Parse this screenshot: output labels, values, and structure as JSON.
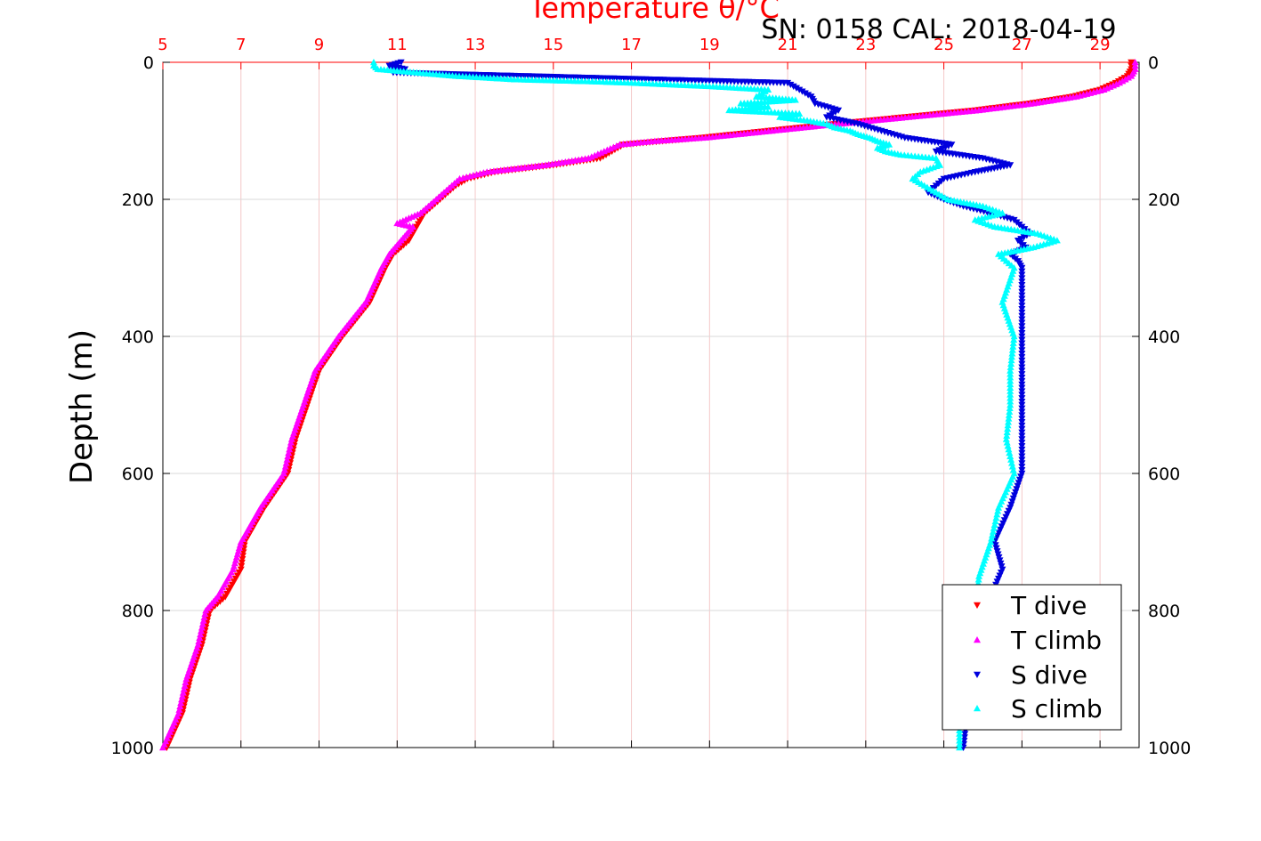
{
  "chart_data": {
    "type": "scatter",
    "title": "Temperature θ/°C",
    "subtitle": "SN: 0158  CAL: 2018-04-19",
    "ylabel": "Depth (m)",
    "xlim": [
      5,
      30
    ],
    "ylim": [
      0,
      1000
    ],
    "x_ticks": [
      "5",
      "7",
      "9",
      "11",
      "13",
      "15",
      "17",
      "19",
      "21",
      "23",
      "25",
      "27",
      "29"
    ],
    "y_ticks": [
      "0",
      "200",
      "400",
      "600",
      "800",
      "1000"
    ],
    "grid": true,
    "legend_position": "bottom-right",
    "colors": {
      "t_dive": "#ff0000",
      "t_climb": "#ff00ff",
      "s_dive": "#0000dd",
      "s_climb": "#00ffff",
      "top_axis": "#ff0000"
    },
    "series": [
      {
        "name": "T dive",
        "marker": "triangle-down",
        "depth": [
          0,
          10,
          20,
          30,
          40,
          50,
          60,
          70,
          80,
          90,
          100,
          110,
          115,
          120,
          130,
          140,
          150,
          160,
          170,
          180,
          200,
          220,
          240,
          260,
          280,
          300,
          350,
          400,
          450,
          500,
          550,
          600,
          650,
          700,
          740,
          780,
          800,
          850,
          900,
          950,
          1000
        ],
        "values": [
          29.8,
          29.8,
          29.7,
          29.4,
          29.0,
          28.3,
          27.2,
          25.8,
          24.0,
          22.2,
          20.5,
          18.8,
          17.8,
          16.8,
          16.5,
          16.2,
          15.0,
          13.5,
          12.8,
          12.5,
          12.1,
          11.7,
          11.5,
          11.3,
          10.9,
          10.7,
          10.3,
          9.6,
          9.0,
          8.7,
          8.4,
          8.2,
          7.6,
          7.1,
          7.0,
          6.6,
          6.2,
          6.0,
          5.7,
          5.5,
          5.1
        ]
      },
      {
        "name": "T climb",
        "marker": "triangle-up",
        "depth": [
          0,
          10,
          20,
          30,
          40,
          50,
          60,
          70,
          80,
          90,
          100,
          110,
          115,
          120,
          130,
          140,
          150,
          160,
          170,
          180,
          200,
          220,
          235,
          240,
          260,
          280,
          300,
          350,
          400,
          450,
          500,
          550,
          600,
          650,
          700,
          740,
          780,
          800,
          850,
          900,
          950,
          1000
        ],
        "values": [
          29.9,
          29.9,
          29.8,
          29.5,
          29.1,
          28.4,
          27.3,
          25.9,
          24.1,
          22.3,
          20.6,
          18.9,
          17.6,
          16.7,
          16.3,
          15.9,
          14.8,
          13.3,
          12.6,
          12.4,
          12.0,
          11.6,
          11.0,
          11.4,
          11.1,
          10.8,
          10.6,
          10.2,
          9.5,
          8.9,
          8.6,
          8.3,
          8.1,
          7.5,
          7.0,
          6.8,
          6.4,
          6.1,
          5.9,
          5.6,
          5.4,
          5.0
        ]
      },
      {
        "name": "S dive",
        "marker": "triangle-down",
        "depth": [
          0,
          5,
          10,
          15,
          30,
          40,
          50,
          60,
          70,
          80,
          90,
          100,
          110,
          120,
          130,
          140,
          150,
          160,
          170,
          180,
          190,
          200,
          210,
          220,
          230,
          240,
          250,
          260,
          270,
          280,
          290,
          300,
          350,
          400,
          450,
          500,
          550,
          600,
          650,
          700,
          740,
          780,
          800,
          850,
          900,
          950,
          1000
        ],
        "values": [
          11.1,
          10.8,
          11.2,
          10.9,
          21.0,
          21.3,
          21.6,
          21.7,
          22.3,
          22.0,
          22.8,
          23.4,
          24.0,
          25.2,
          24.8,
          26.0,
          26.7,
          25.8,
          25.0,
          24.8,
          24.6,
          25.0,
          25.5,
          26.2,
          26.8,
          27.0,
          27.2,
          26.9,
          27.1,
          26.7,
          26.9,
          27.0,
          27.0,
          27.0,
          27.0,
          27.0,
          27.0,
          27.0,
          26.7,
          26.3,
          26.5,
          26.2,
          26.0,
          25.9,
          25.8,
          25.6,
          25.5
        ]
      },
      {
        "name": "S climb",
        "marker": "triangle-up",
        "depth": [
          0,
          5,
          10,
          15,
          20,
          25,
          28,
          30,
          35,
          40,
          50,
          55,
          60,
          65,
          70,
          75,
          80,
          85,
          90,
          95,
          100,
          105,
          110,
          115,
          120,
          125,
          130,
          135,
          140,
          150,
          160,
          170,
          180,
          190,
          200,
          210,
          220,
          230,
          240,
          250,
          260,
          270,
          280,
          300,
          350,
          400,
          450,
          500,
          550,
          600,
          650,
          700,
          750,
          800,
          850,
          900,
          950,
          1000
        ],
        "values": [
          10.4,
          10.4,
          10.5,
          11.5,
          12.5,
          14.0,
          16.0,
          17.0,
          19.0,
          20.5,
          20.2,
          21.2,
          19.8,
          20.5,
          19.5,
          21.3,
          20.8,
          21.5,
          22.0,
          22.2,
          22.6,
          22.8,
          23.1,
          23.3,
          23.6,
          23.3,
          23.5,
          23.9,
          24.8,
          24.9,
          24.4,
          24.2,
          24.5,
          24.8,
          25.1,
          26.0,
          26.5,
          25.8,
          26.3,
          27.4,
          27.9,
          27.3,
          26.4,
          26.8,
          26.5,
          26.8,
          26.7,
          26.7,
          26.6,
          26.8,
          26.4,
          26.2,
          25.9,
          25.8,
          25.7,
          25.6,
          25.4,
          25.4
        ]
      }
    ]
  }
}
